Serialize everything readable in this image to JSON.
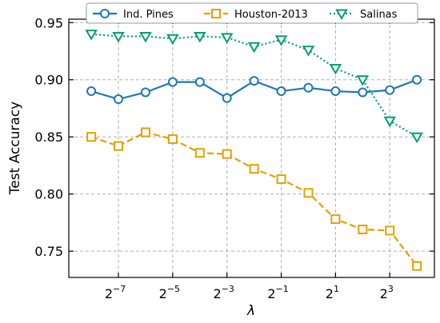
{
  "chart_data": {
    "type": "line",
    "xlabel": "λ",
    "ylabel": "Test Accuracy",
    "xscale": "log2",
    "x": [
      0.00390625,
      0.0078125,
      0.015625,
      0.03125,
      0.0625,
      0.125,
      0.25,
      0.5,
      1,
      2,
      4,
      8,
      16
    ],
    "xlim": [
      0.0022,
      25
    ],
    "ylim": [
      0.727,
      0.953
    ],
    "grid": true,
    "legend_position": "top",
    "x_ticks": [
      {
        "value": 0.0078125,
        "base": "2",
        "exp": "−7"
      },
      {
        "value": 0.03125,
        "base": "2",
        "exp": "−5"
      },
      {
        "value": 0.125,
        "base": "2",
        "exp": "−3"
      },
      {
        "value": 0.5,
        "base": "2",
        "exp": "−1"
      },
      {
        "value": 2,
        "base": "2",
        "exp": "1"
      },
      {
        "value": 8,
        "base": "2",
        "exp": "3"
      }
    ],
    "y_ticks": [
      {
        "value": 0.75,
        "label": "0.75"
      },
      {
        "value": 0.8,
        "label": "0.80"
      },
      {
        "value": 0.85,
        "label": "0.85"
      },
      {
        "value": 0.9,
        "label": "0.90"
      },
      {
        "value": 0.95,
        "label": "0.95"
      }
    ],
    "series": [
      {
        "name": "Ind. Pines",
        "color": "#1f77b4",
        "marker": "circle",
        "linestyle": "solid",
        "values": [
          0.89,
          0.883,
          0.889,
          0.898,
          0.898,
          0.884,
          0.899,
          0.89,
          0.893,
          0.89,
          0.889,
          0.891,
          0.9
        ]
      },
      {
        "name": "Houston-2013",
        "color": "#e69f00",
        "marker": "square",
        "linestyle": "dashed",
        "values": [
          0.85,
          0.842,
          0.854,
          0.848,
          0.836,
          0.835,
          0.822,
          0.813,
          0.801,
          0.778,
          0.769,
          0.768,
          0.737
        ]
      },
      {
        "name": "Salinas",
        "color": "#009e73",
        "marker": "triangle-down",
        "linestyle": "dotted",
        "values": [
          0.94,
          0.938,
          0.938,
          0.936,
          0.938,
          0.937,
          0.929,
          0.935,
          0.926,
          0.91,
          0.9,
          0.864,
          0.85
        ]
      }
    ]
  }
}
